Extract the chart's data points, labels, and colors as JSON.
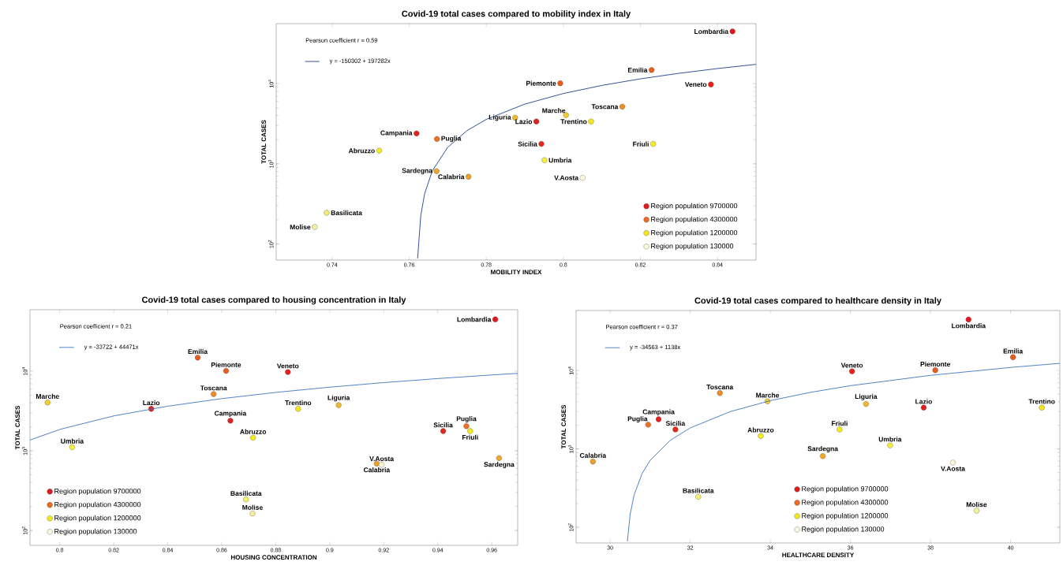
{
  "chart_data": [
    {
      "type": "scatter",
      "title": "Covid-19 total cases compared to mobility index in Italy",
      "xlabel": "MOBILITY INDEX",
      "ylabel": "TOTAL CASES",
      "log": "y",
      "marker": "circle",
      "legend": "bottom right",
      "xlim": [
        0.7255,
        0.85
      ],
      "ylim": [
        63,
        56000
      ],
      "xticks": [
        0.74,
        0.76,
        0.78,
        0.8,
        0.82,
        0.84
      ],
      "yticks": [
        {
          "value": 100,
          "label": "10$^{2}$"
        },
        {
          "value": 1000,
          "label": "10$^{3}$"
        },
        {
          "value": 10000,
          "label": "10$^{4}$"
        }
      ],
      "series": [
        {
          "name": "Region population 9700000",
          "type": "scatter",
          "color": "#e31a1c",
          "colors": [
            "#e8141c",
            "#e8201c",
            "#e4201c",
            "#e4201c",
            "#e42a1c"
          ],
          "x": [
            0.8439,
            0.8383,
            0.793,
            0.7619,
            0.7943
          ],
          "values": [
            44800,
            9770,
            3370,
            2390,
            1770
          ]
        },
        {
          "name": "Region population 4300000",
          "type": "scatter",
          "color": "#ee6a20",
          "colors": [
            "#ec5a1e",
            "#ec5a1e",
            "#f08c24",
            "#f0b82c",
            "#ee7020",
            "#f0a828",
            "#f0a028"
          ],
          "x": [
            0.8229,
            0.7992,
            0.8153,
            0.7875,
            0.7672,
            0.7671,
            0.7754
          ],
          "values": [
            14800,
            10100,
            5160,
            3750,
            2040,
            809,
            690
          ]
        },
        {
          "name": "Region population 1200000",
          "type": "scatter",
          "color": "#f5e61e",
          "colors": [
            "#f0cc30",
            "#f5e61e",
            "#f5ec1e",
            "#f5ec20",
            "#f5ee40",
            "#f5ee70",
            "#f5f0a0"
          ],
          "x": [
            0.8007,
            0.8072,
            0.8233,
            0.7522,
            0.7951,
            0.7386,
            0.7355
          ],
          "values": [
            4050,
            3370,
            1770,
            1460,
            1110,
            245,
            163
          ]
        },
        {
          "name": "Region population 130000",
          "type": "scatter",
          "color": "#fbf8dc",
          "colors": [
            "#fbf8dc"
          ],
          "x": [
            0.805
          ],
          "values": [
            668
          ]
        },
        {
          "name": "y = -150302 + 197282x",
          "type": "line",
          "marker": "none",
          "color": "#1f3f8f",
          "x": [
            0.7622,
            0.763,
            0.764,
            0.766,
            0.77,
            0.775,
            0.78,
            0.79,
            0.8,
            0.81,
            0.82,
            0.83,
            0.84,
            0.85
          ],
          "values": [
            66,
            224,
            421,
            816,
            1605,
            2592,
            3578,
            5551,
            7524,
            9496,
            11469,
            13442,
            15415,
            17388
          ]
        }
      ],
      "annotations": [
        {
          "text": "Lombardia",
          "x": 0.8439,
          "y": 44800
        },
        {
          "text": "Emilia",
          "x": 0.8229,
          "y": 14800
        },
        {
          "text": "Veneto",
          "x": 0.8383,
          "y": 9770
        },
        {
          "text": "Piemonte",
          "x": 0.7992,
          "y": 10100
        },
        {
          "text": "Toscana",
          "x": 0.8153,
          "y": 5160
        },
        {
          "text": "Marche",
          "x": 0.8007,
          "y": 4050
        },
        {
          "text": "Liguria",
          "x": 0.7875,
          "y": 3750
        },
        {
          "text": "Lazio",
          "x": 0.793,
          "y": 3370
        },
        {
          "text": "Trentino",
          "x": 0.8072,
          "y": 3370
        },
        {
          "text": "Campania",
          "x": 0.7619,
          "y": 2390
        },
        {
          "text": "Puglia",
          "x": 0.7672,
          "y": 2040
        },
        {
          "text": "Sicilia",
          "x": 0.7943,
          "y": 1770
        },
        {
          "text": "Friuli",
          "x": 0.8233,
          "y": 1770
        },
        {
          "text": "Abruzzo",
          "x": 0.7522,
          "y": 1460
        },
        {
          "text": "Umbria",
          "x": 0.7951,
          "y": 1110
        },
        {
          "text": "Sardegna",
          "x": 0.7671,
          "y": 809
        },
        {
          "text": "Calabria",
          "x": 0.7754,
          "y": 690
        },
        {
          "text": "V.Aosta",
          "x": 0.805,
          "y": 668
        },
        {
          "text": "Basilicata",
          "x": 0.7386,
          "y": 245
        },
        {
          "text": "Molise",
          "x": 0.7355,
          "y": 163
        },
        "Pearson coefficient r = 0.59"
      ]
    },
    {
      "type": "scatter",
      "title": "Covid-19 total cases compared to housing concentration in Italy",
      "xlabel": "HOUSING CONCENTRATION",
      "ylabel": "TOTAL CASES",
      "log": "y",
      "marker": "circle",
      "legend": "bottom left",
      "xlim": [
        0.789,
        0.9696
      ],
      "ylim": [
        65,
        59200
      ],
      "xticks": [
        0.8,
        0.82,
        0.84,
        0.86,
        0.88,
        0.9,
        0.92,
        0.94,
        0.96
      ],
      "yticks": [
        {
          "value": 100,
          "label": "10$^{2}$"
        },
        {
          "value": 1000,
          "label": "10$^{3}$"
        },
        {
          "value": 10000,
          "label": "10$^{4}$"
        }
      ],
      "series": [
        {
          "name": "Region population 9700000",
          "type": "scatter",
          "color": "#e31a1c",
          "colors": [
            "#e8141c",
            "#e8201c",
            "#e4201c",
            "#e4201c",
            "#e42a1c"
          ],
          "x": [
            0.9613,
            0.8845,
            0.8339,
            0.8632,
            0.942
          ],
          "values": [
            44800,
            9770,
            3370,
            2390,
            1770
          ]
        },
        {
          "name": "Region population 4300000",
          "type": "scatter",
          "color": "#ee6a20",
          "colors": [
            "#ec5a1e",
            "#ec5a1e",
            "#f08c24",
            "#f0b82c",
            "#ee7020",
            "#f0a828",
            "#f0a028"
          ],
          "x": [
            0.8511,
            0.8616,
            0.857,
            0.9033,
            0.9506,
            0.9627,
            0.9174
          ],
          "values": [
            14800,
            10100,
            5160,
            3750,
            2040,
            809,
            690
          ]
        },
        {
          "name": "Region population 1200000",
          "type": "scatter",
          "color": "#f5e61e",
          "colors": [
            "#f0cc30",
            "#f5e61e",
            "#f5ec1e",
            "#f5ec20",
            "#f5ee40",
            "#f5ee70",
            "#f5f0a0"
          ],
          "x": [
            0.7955,
            0.8883,
            0.952,
            0.8716,
            0.8046,
            0.869,
            0.8714
          ],
          "values": [
            4050,
            3370,
            1770,
            1460,
            1110,
            245,
            163
          ]
        },
        {
          "name": "Region population 130000",
          "type": "scatter",
          "color": "#fbf8dc",
          "colors": [
            "#fbf8dc"
          ],
          "x": [
            0.9192
          ],
          "values": [
            668
          ]
        },
        {
          "name": "y = -33722 + 44471x",
          "type": "line",
          "marker": "none",
          "color": "#3b75c4",
          "x": [
            0.789,
            0.8,
            0.82,
            0.84,
            0.86,
            0.88,
            0.9,
            0.92,
            0.94,
            0.96,
            0.9696
          ],
          "values": [
            1366,
            1855,
            2744,
            3634,
            4523,
            5412,
            6302,
            7191,
            8081,
            8970,
            9397
          ]
        }
      ],
      "annotations": [
        {
          "text": "Lombardia",
          "x": 0.9613,
          "y": 44800
        },
        {
          "text": "Emilia",
          "x": 0.8511,
          "y": 14800
        },
        {
          "text": "Veneto",
          "x": 0.8845,
          "y": 9770
        },
        {
          "text": "Piemonte",
          "x": 0.8616,
          "y": 10100
        },
        {
          "text": "Toscana",
          "x": 0.857,
          "y": 5160
        },
        {
          "text": "Marche",
          "x": 0.7955,
          "y": 4050
        },
        {
          "text": "Liguria",
          "x": 0.9033,
          "y": 3750
        },
        {
          "text": "Lazio",
          "x": 0.8339,
          "y": 3370
        },
        {
          "text": "Trentino",
          "x": 0.8883,
          "y": 3370
        },
        {
          "text": "Campania",
          "x": 0.8632,
          "y": 2390
        },
        {
          "text": "Puglia",
          "x": 0.9506,
          "y": 2040
        },
        {
          "text": "Sicilia",
          "x": 0.942,
          "y": 1770
        },
        {
          "text": "Friuli",
          "x": 0.952,
          "y": 1770
        },
        {
          "text": "Abruzzo",
          "x": 0.8716,
          "y": 1460
        },
        {
          "text": "Umbria",
          "x": 0.8046,
          "y": 1110
        },
        {
          "text": "Sardegna",
          "x": 0.9627,
          "y": 809
        },
        {
          "text": "Calabria",
          "x": 0.9174,
          "y": 690
        },
        {
          "text": "V.Aosta",
          "x": 0.9192,
          "y": 668
        },
        {
          "text": "Basilicata",
          "x": 0.869,
          "y": 245
        },
        {
          "text": "Molise",
          "x": 0.8714,
          "y": 163
        },
        "Pearson coefficient r = 0.21"
      ]
    },
    {
      "type": "scatter",
      "title": "Covid-19 total cases compared to healthcare density in Italy",
      "xlabel": "HEALTHCARE DENSITY",
      "ylabel": "TOTAL CASES",
      "log": "y",
      "marker": "circle",
      "legend": "bottom",
      "xlim": [
        29.15,
        41.23
      ],
      "ylim": [
        63,
        58400
      ],
      "xticks": [
        30,
        32,
        34,
        36,
        38,
        40
      ],
      "yticks": [
        {
          "value": 100,
          "label": "10$^{2}$"
        },
        {
          "value": 1000,
          "label": "10$^{3}$"
        },
        {
          "value": 10000,
          "label": "10$^{4}$"
        }
      ],
      "series": [
        {
          "name": "Region population 9700000",
          "type": "scatter",
          "color": "#e31a1c",
          "colors": [
            "#e8141c",
            "#e8201c",
            "#e4201c",
            "#e4201c",
            "#e42a1c"
          ],
          "x": [
            38.95,
            36.04,
            37.83,
            31.21,
            31.63
          ],
          "values": [
            44800,
            9770,
            3370,
            2390,
            1770
          ]
        },
        {
          "name": "Region population 4300000",
          "type": "scatter",
          "color": "#ee6a20",
          "colors": [
            "#ec5a1e",
            "#ec5a1e",
            "#f08c24",
            "#f0b82c",
            "#ee7020",
            "#f0a828",
            "#f0a028"
          ],
          "x": [
            40.06,
            38.12,
            32.74,
            36.39,
            30.95,
            35.31,
            29.57
          ],
          "values": [
            14800,
            10100,
            5160,
            3750,
            2040,
            809,
            690
          ]
        },
        {
          "name": "Region population 1200000",
          "type": "scatter",
          "color": "#f5e61e",
          "colors": [
            "#f0cc30",
            "#f5e61e",
            "#f5ec1e",
            "#f5ec20",
            "#f5ee40",
            "#f5ee70",
            "#f5f0a0"
          ],
          "x": [
            33.93,
            40.78,
            35.73,
            33.76,
            36.99,
            32.2,
            39.15
          ],
          "values": [
            4050,
            3370,
            1770,
            1460,
            1110,
            245,
            163
          ]
        },
        {
          "name": "Region population 130000",
          "type": "scatter",
          "color": "#fbf8dc",
          "colors": [
            "#fbf8dc"
          ],
          "x": [
            38.56
          ],
          "values": [
            668
          ]
        },
        {
          "name": "y = -34563 + 1138x",
          "type": "line",
          "marker": "none",
          "color": "#3b75c4",
          "x": [
            30.43,
            30.5,
            30.6,
            30.8,
            31,
            31.5,
            32,
            33,
            34,
            35,
            36,
            38,
            40,
            41.23
          ],
          "values": [
            66,
            146,
            260,
            487,
            715,
            1284,
            1853,
            2991,
            4129,
            5267,
            6405,
            8681,
            10957,
            12355
          ]
        }
      ],
      "annotations": [
        {
          "text": "Lombardia",
          "x": 38.95,
          "y": 44800
        },
        {
          "text": "Emilia",
          "x": 40.06,
          "y": 14800
        },
        {
          "text": "Veneto",
          "x": 36.04,
          "y": 9770
        },
        {
          "text": "Piemonte",
          "x": 38.12,
          "y": 10100
        },
        {
          "text": "Toscana",
          "x": 32.74,
          "y": 5160
        },
        {
          "text": "Marche",
          "x": 33.93,
          "y": 4050
        },
        {
          "text": "Liguria",
          "x": 36.39,
          "y": 3750
        },
        {
          "text": "Lazio",
          "x": 37.83,
          "y": 3370
        },
        {
          "text": "Trentino",
          "x": 40.78,
          "y": 3370
        },
        {
          "text": "Campania",
          "x": 31.21,
          "y": 2390
        },
        {
          "text": "Puglia",
          "x": 30.95,
          "y": 2040
        },
        {
          "text": "Sicilia",
          "x": 31.63,
          "y": 1770
        },
        {
          "text": "Friuli",
          "x": 35.73,
          "y": 1770
        },
        {
          "text": "Abruzzo",
          "x": 33.76,
          "y": 1460
        },
        {
          "text": "Umbria",
          "x": 36.99,
          "y": 1110
        },
        {
          "text": "Sardegna",
          "x": 35.31,
          "y": 809
        },
        {
          "text": "Calabria",
          "x": 29.57,
          "y": 690
        },
        {
          "text": "V.Aosta",
          "x": 38.56,
          "y": 668
        },
        {
          "text": "Basilicata",
          "x": 32.2,
          "y": 245
        },
        {
          "text": "Molise",
          "x": 39.15,
          "y": 163
        },
        "Pearson coefficient r = 0.37"
      ]
    }
  ]
}
